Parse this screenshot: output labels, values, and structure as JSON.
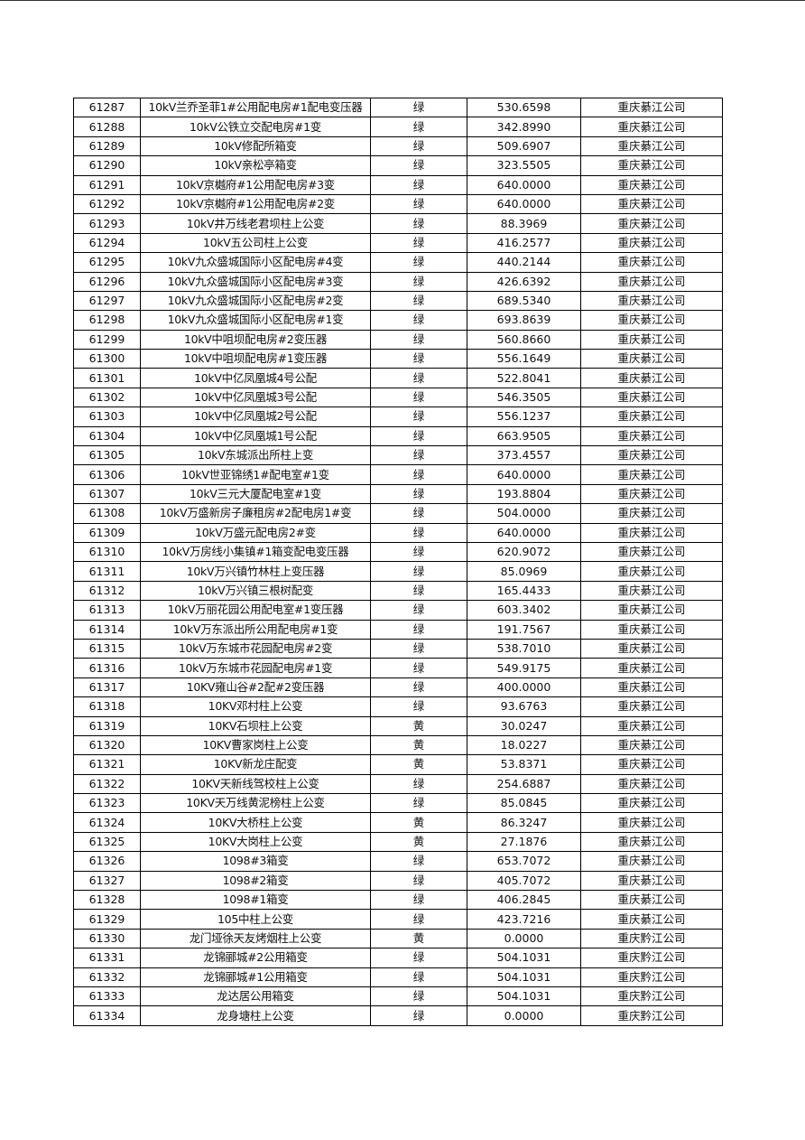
{
  "table": {
    "rows": [
      [
        "61287",
        "10kV兰乔圣菲1#公用配电房#1配电变压器",
        "绿",
        "530.6598",
        "重庆綦江公司"
      ],
      [
        "61288",
        "10kV公铁立交配电房#1变",
        "绿",
        "342.8990",
        "重庆綦江公司"
      ],
      [
        "61289",
        "10kV修配所箱变",
        "绿",
        "509.6907",
        "重庆綦江公司"
      ],
      [
        "61290",
        "10kV亲松亭箱变",
        "绿",
        "323.5505",
        "重庆綦江公司"
      ],
      [
        "61291",
        "10kV京樾府#1公用配电房#3变",
        "绿",
        "640.0000",
        "重庆綦江公司"
      ],
      [
        "61292",
        "10kV京樾府#1公用配电房#2变",
        "绿",
        "640.0000",
        "重庆綦江公司"
      ],
      [
        "61293",
        "10kV井万线老君坝柱上公变",
        "绿",
        "88.3969",
        "重庆綦江公司"
      ],
      [
        "61294",
        "10kV五公司柱上公变",
        "绿",
        "416.2577",
        "重庆綦江公司"
      ],
      [
        "61295",
        "10kV九众盛城国际小区配电房#4变",
        "绿",
        "440.2144",
        "重庆綦江公司"
      ],
      [
        "61296",
        "10kV九众盛城国际小区配电房#3变",
        "绿",
        "426.6392",
        "重庆綦江公司"
      ],
      [
        "61297",
        "10kV九众盛城国际小区配电房#2变",
        "绿",
        "689.5340",
        "重庆綦江公司"
      ],
      [
        "61298",
        "10kV九众盛城国际小区配电房#1变",
        "绿",
        "693.8639",
        "重庆綦江公司"
      ],
      [
        "61299",
        "10kV中咀坝配电房#2变压器",
        "绿",
        "560.8660",
        "重庆綦江公司"
      ],
      [
        "61300",
        "10kV中咀坝配电房#1变压器",
        "绿",
        "556.1649",
        "重庆綦江公司"
      ],
      [
        "61301",
        "10kV中亿凤凰城4号公配",
        "绿",
        "522.8041",
        "重庆綦江公司"
      ],
      [
        "61302",
        "10kV中亿凤凰城3号公配",
        "绿",
        "546.3505",
        "重庆綦江公司"
      ],
      [
        "61303",
        "10kV中亿凤凰城2号公配",
        "绿",
        "556.1237",
        "重庆綦江公司"
      ],
      [
        "61304",
        "10kV中亿凤凰城1号公配",
        "绿",
        "663.9505",
        "重庆綦江公司"
      ],
      [
        "61305",
        "10kV东城派出所柱上变",
        "绿",
        "373.4557",
        "重庆綦江公司"
      ],
      [
        "61306",
        "10kV世亚锦绣1#配电室#1变",
        "绿",
        "640.0000",
        "重庆綦江公司"
      ],
      [
        "61307",
        "10kV三元大厦配电室#1变",
        "绿",
        "193.8804",
        "重庆綦江公司"
      ],
      [
        "61308",
        "10kV万盛新房子廉租房#2配电房1#变",
        "绿",
        "504.0000",
        "重庆綦江公司"
      ],
      [
        "61309",
        "10kV万盛元配电房2#变",
        "绿",
        "640.0000",
        "重庆綦江公司"
      ],
      [
        "61310",
        "10kV万房线小集镇#1箱变配电变压器",
        "绿",
        "620.9072",
        "重庆綦江公司"
      ],
      [
        "61311",
        "10kV万兴镇竹林柱上变压器",
        "绿",
        "85.0969",
        "重庆綦江公司"
      ],
      [
        "61312",
        "10kV万兴镇三根树配变",
        "绿",
        "165.4433",
        "重庆綦江公司"
      ],
      [
        "61313",
        "10kV万丽花园公用配电室#1变压器",
        "绿",
        "603.3402",
        "重庆綦江公司"
      ],
      [
        "61314",
        "10kV万东派出所公用配电房#1变",
        "绿",
        "191.7567",
        "重庆綦江公司"
      ],
      [
        "61315",
        "10kV万东城市花园配电房#2变",
        "绿",
        "538.7010",
        "重庆綦江公司"
      ],
      [
        "61316",
        "10kV万东城市花园配电房#1变",
        "绿",
        "549.9175",
        "重庆綦江公司"
      ],
      [
        "61317",
        "10KV雍山谷#2配#2变压器",
        "绿",
        "400.0000",
        "重庆綦江公司"
      ],
      [
        "61318",
        "10KV邓村柱上公变",
        "绿",
        "93.6763",
        "重庆綦江公司"
      ],
      [
        "61319",
        "10KV石坝柱上公变",
        "黄",
        "30.0247",
        "重庆綦江公司"
      ],
      [
        "61320",
        "10KV曹家岗柱上公变",
        "黄",
        "18.0227",
        "重庆綦江公司"
      ],
      [
        "61321",
        "10KV新龙庄配变",
        "黄",
        "53.8371",
        "重庆綦江公司"
      ],
      [
        "61322",
        "10KV天新线驾校柱上公变",
        "绿",
        "254.6887",
        "重庆綦江公司"
      ],
      [
        "61323",
        "10KV天万线黄泥榜柱上公变",
        "绿",
        "85.0845",
        "重庆綦江公司"
      ],
      [
        "61324",
        "10KV大桥柱上公变",
        "黄",
        "86.3247",
        "重庆綦江公司"
      ],
      [
        "61325",
        "10KV大岗柱上公变",
        "黄",
        "27.1876",
        "重庆綦江公司"
      ],
      [
        "61326",
        "1098#3箱变",
        "绿",
        "653.7072",
        "重庆綦江公司"
      ],
      [
        "61327",
        "1098#2箱变",
        "绿",
        "405.7072",
        "重庆綦江公司"
      ],
      [
        "61328",
        "1098#1箱变",
        "绿",
        "406.2845",
        "重庆綦江公司"
      ],
      [
        "61329",
        "105中柱上公变",
        "绿",
        "423.7216",
        "重庆綦江公司"
      ],
      [
        "61330",
        "龙门垭徐天友烤烟柱上公变",
        "黄",
        "0.0000",
        "重庆黔江公司"
      ],
      [
        "61331",
        "龙锦郦城#2公用箱变",
        "绿",
        "504.1031",
        "重庆黔江公司"
      ],
      [
        "61332",
        "龙锦郦城#1公用箱变",
        "绿",
        "504.1031",
        "重庆黔江公司"
      ],
      [
        "61333",
        "龙达居公用箱变",
        "绿",
        "504.1031",
        "重庆黔江公司"
      ],
      [
        "61334",
        "龙身塘柱上公变",
        "绿",
        "0.0000",
        "重庆黔江公司"
      ]
    ]
  }
}
